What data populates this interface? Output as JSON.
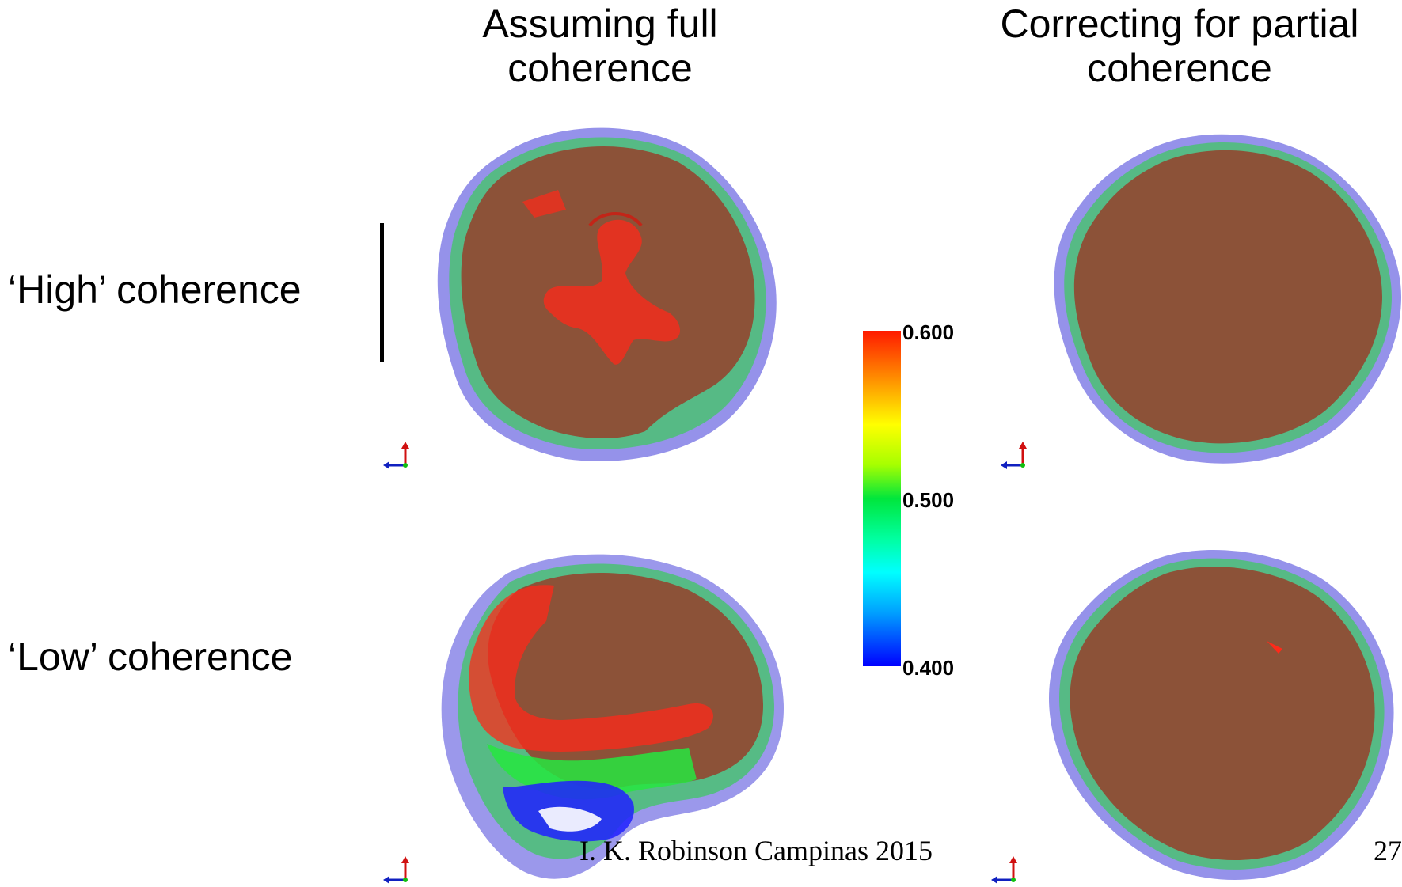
{
  "columns": [
    {
      "title_line1": "Assuming full",
      "title_line2": "coherence"
    },
    {
      "title_line1": "Correcting for partial",
      "title_line2": "coherence"
    }
  ],
  "rows": [
    {
      "label": "‘High’ coherence"
    },
    {
      "label": "‘Low’ coherence"
    }
  ],
  "colorbar": {
    "ticks": [
      "0.600",
      "0.500",
      "0.400"
    ],
    "colors": [
      "#ff1a00",
      "#ffff00",
      "#00e63c",
      "#00ffff",
      "#0000ff"
    ]
  },
  "footer": {
    "author": "I. K. Robinson  Campinas 2015",
    "page_number": "27"
  },
  "surface_colors": {
    "shell": "#8a86e8",
    "middle": "#4fbf7a",
    "core": "#8c5238",
    "high_density": "#ff2a1a",
    "low_density": "#2020ff"
  },
  "icons": [
    "axes-triad-icon"
  ]
}
